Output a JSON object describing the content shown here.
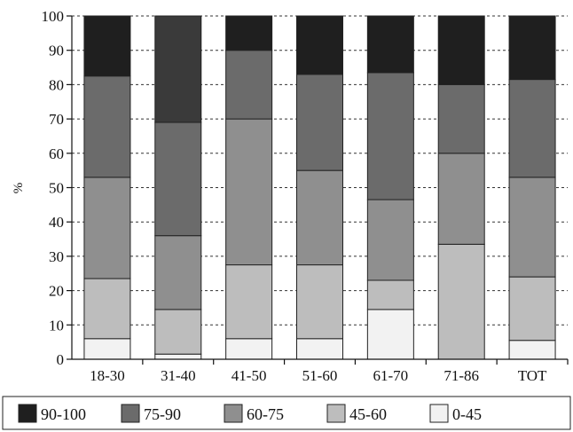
{
  "chart_data": {
    "type": "bar",
    "stacked": true,
    "categories": [
      "18-30",
      "31-40",
      "41-50",
      "51-60",
      "61-70",
      "71-86",
      "TOT"
    ],
    "ylabel": "%",
    "xlabel": "",
    "ylim": [
      0,
      100
    ],
    "yticks": [
      0,
      10,
      20,
      30,
      40,
      50,
      60,
      70,
      80,
      90,
      100
    ],
    "grid": "horizontal-dashed",
    "legend_position": "bottom",
    "series": [
      {
        "name": "0-45",
        "color": "#f2f2f2",
        "values": [
          6,
          1.5,
          6,
          6,
          14.5,
          0,
          5.5
        ]
      },
      {
        "name": "45-60",
        "color": "#bdbdbd",
        "values": [
          17.5,
          13,
          21.5,
          21.5,
          8.5,
          33.5,
          18.5
        ]
      },
      {
        "name": "60-75",
        "color": "#8f8f8f",
        "values": [
          29.5,
          21.5,
          42.5,
          27.5,
          23.5,
          26.5,
          29
        ]
      },
      {
        "name": "75-90",
        "color": "#6b6b6b",
        "values": [
          29.5,
          33,
          20,
          28,
          37,
          20,
          28.5
        ]
      },
      {
        "name": "90-100",
        "color": "#1f1f1f",
        "values": [
          17.5,
          31,
          10,
          17,
          16.5,
          20,
          18.5
        ]
      }
    ],
    "legend_order": [
      "90-100",
      "75-90",
      "60-75",
      "45-60",
      "0-45"
    ],
    "special_fills": {
      "31-40": {
        "90-100": "#3a3a3a"
      }
    }
  }
}
